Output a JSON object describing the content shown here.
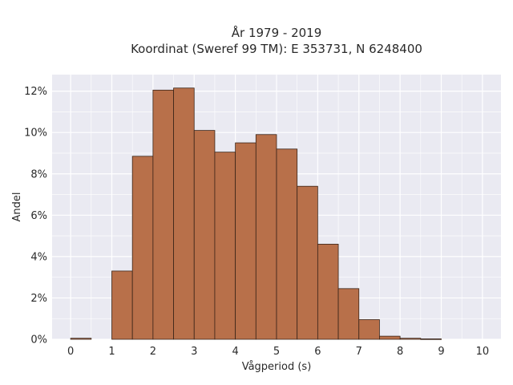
{
  "chart_data": {
    "type": "bar",
    "title": "År 1979 - 2019",
    "subtitle": "Koordinat (Sweref 99 TM): E 353731, N 6248400",
    "xlabel": "Vågperiod (s)",
    "ylabel": "Andel",
    "bin_width": 0.5,
    "bins": [
      {
        "x0": 0.0,
        "value": 0.05
      },
      {
        "x0": 0.5,
        "value": 0.0
      },
      {
        "x0": 1.0,
        "value": 3.3
      },
      {
        "x0": 1.5,
        "value": 8.85
      },
      {
        "x0": 2.0,
        "value": 12.05
      },
      {
        "x0": 2.5,
        "value": 12.15
      },
      {
        "x0": 3.0,
        "value": 10.1
      },
      {
        "x0": 3.5,
        "value": 9.05
      },
      {
        "x0": 4.0,
        "value": 9.5
      },
      {
        "x0": 4.5,
        "value": 9.9
      },
      {
        "x0": 5.0,
        "value": 9.2
      },
      {
        "x0": 5.5,
        "value": 7.4
      },
      {
        "x0": 6.0,
        "value": 4.6
      },
      {
        "x0": 6.5,
        "value": 2.45
      },
      {
        "x0": 7.0,
        "value": 0.95
      },
      {
        "x0": 7.5,
        "value": 0.15
      },
      {
        "x0": 8.0,
        "value": 0.05
      },
      {
        "x0": 8.5,
        "value": 0.02
      },
      {
        "x0": 9.0,
        "value": 0.0
      },
      {
        "x0": 9.5,
        "value": 0.0
      }
    ],
    "xlim": [
      -0.45,
      10.45
    ],
    "ylim": [
      0,
      12.8
    ],
    "x_ticks": [
      0,
      1,
      2,
      3,
      4,
      5,
      6,
      7,
      8,
      9,
      10
    ],
    "x_tick_labels": [
      "0",
      "1",
      "2",
      "3",
      "4",
      "5",
      "6",
      "7",
      "8",
      "9",
      "10"
    ],
    "y_ticks": [
      0,
      2,
      4,
      6,
      8,
      10,
      12
    ],
    "y_tick_labels": [
      "0%",
      "2%",
      "4%",
      "6%",
      "8%",
      "10%",
      "12%"
    ],
    "grid": true,
    "colors": {
      "background": "#eaeaf2",
      "grid": "#ffffff",
      "bar_fill": "#b8704a",
      "bar_edge": "#3a2418"
    }
  }
}
